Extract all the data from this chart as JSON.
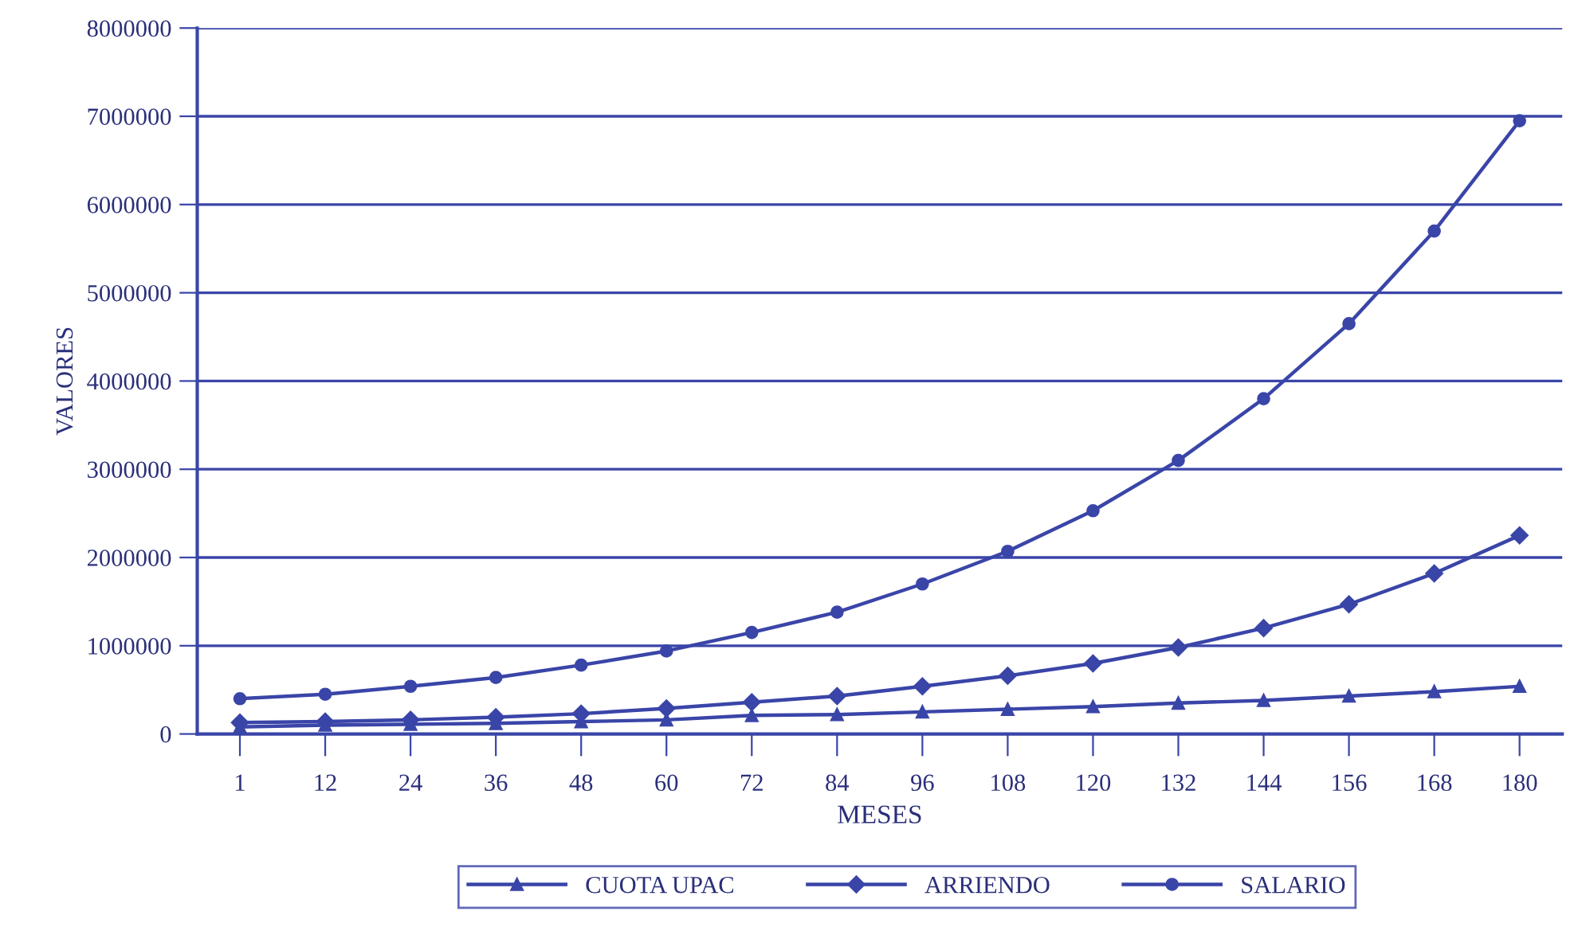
{
  "chart_data": {
    "type": "line",
    "xlabel": "MESES",
    "ylabel": "VALORES",
    "categories": [
      "1",
      "12",
      "24",
      "36",
      "48",
      "60",
      "72",
      "84",
      "96",
      "108",
      "120",
      "132",
      "144",
      "156",
      "168",
      "180"
    ],
    "series": [
      {
        "name": "CUOTA UPAC",
        "color": "#3a45a8",
        "marker": "triangle",
        "values": [
          80000,
          100000,
          110000,
          120000,
          140000,
          160000,
          210000,
          220000,
          250000,
          280000,
          310000,
          350000,
          380000,
          430000,
          480000,
          540000
        ]
      },
      {
        "name": "ARRIENDO",
        "color": "#3a45a8",
        "marker": "diamond",
        "values": [
          130000,
          140000,
          160000,
          190000,
          230000,
          290000,
          360000,
          430000,
          540000,
          660000,
          800000,
          980000,
          1200000,
          1470000,
          1820000,
          2250000
        ]
      },
      {
        "name": "SALARIO",
        "color": "#3a45a8",
        "marker": "circle",
        "values": [
          400000,
          450000,
          540000,
          640000,
          780000,
          940000,
          1150000,
          1380000,
          1700000,
          2070000,
          2530000,
          3100000,
          3800000,
          4650000,
          5700000,
          6950000
        ]
      }
    ],
    "ylim": [
      0,
      8000000
    ],
    "yticks": [
      0,
      1000000,
      2000000,
      3000000,
      4000000,
      5000000,
      6000000,
      7000000,
      8000000
    ],
    "grid": "y",
    "legend": "bottom",
    "line_style": "solid"
  }
}
